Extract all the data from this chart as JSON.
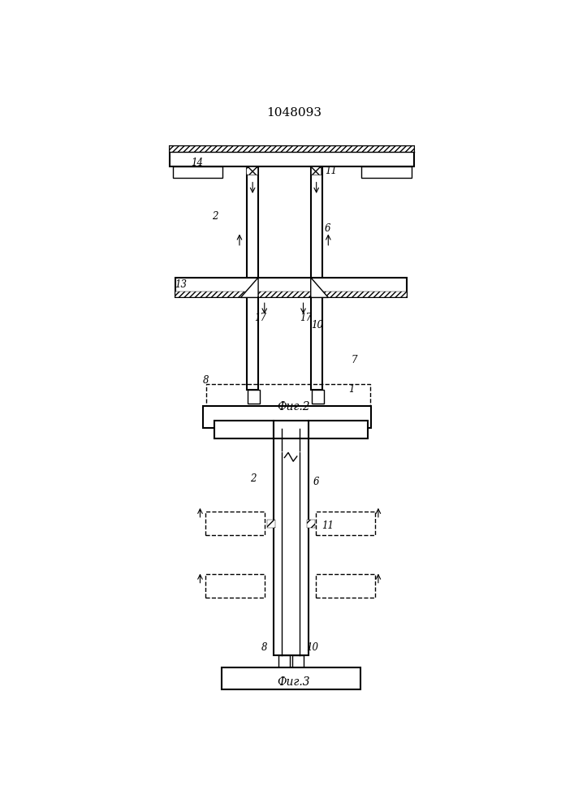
{
  "title": "1048093",
  "fig2_label": "Фиг.2",
  "fig3_label": "Фиг.3",
  "bg_color": "#ffffff"
}
